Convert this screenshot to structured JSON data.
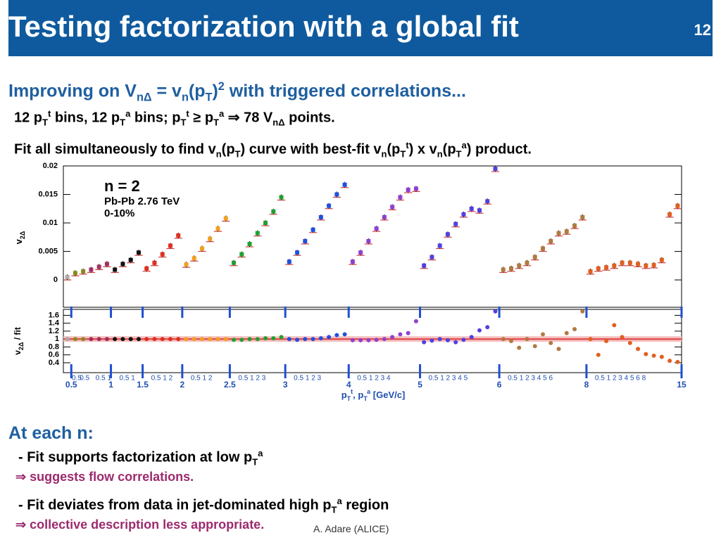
{
  "header": {
    "title": "Testing factorization with a global fit",
    "page": "12"
  },
  "subtitle": [
    {
      "text": "Improving on V"
    },
    {
      "text": "nΔ",
      "pos": "sub"
    },
    {
      "text": " = v"
    },
    {
      "text": "n",
      "pos": "sub"
    },
    {
      "text": "(p"
    },
    {
      "text": "T",
      "pos": "sub"
    },
    {
      "text": ")"
    },
    {
      "text": "2",
      "pos": "sup"
    },
    {
      "text": " with triggered correlations..."
    }
  ],
  "lines": [
    [
      {
        "text": "12 p"
      },
      {
        "text": "T",
        "pos": "sub"
      },
      {
        "text": "t",
        "pos": "sup"
      },
      {
        "text": " bins, 12 p"
      },
      {
        "text": "T",
        "pos": "sub"
      },
      {
        "text": "a",
        "pos": "sup"
      },
      {
        "text": " bins; p"
      },
      {
        "text": "T",
        "pos": "sub"
      },
      {
        "text": "t",
        "pos": "sup"
      },
      {
        "text": " ≥ p"
      },
      {
        "text": "T",
        "pos": "sub"
      },
      {
        "text": "a",
        "pos": "sup"
      },
      {
        "text": "  ⇒ 78 V"
      },
      {
        "text": "nΔ",
        "pos": "sub"
      },
      {
        "text": " points."
      }
    ],
    [
      {
        "text": "Fit all simultaneously to find v"
      },
      {
        "text": "n",
        "pos": "sub"
      },
      {
        "text": "(p"
      },
      {
        "text": "T",
        "pos": "sub"
      },
      {
        "text": ") curve with best-fit v"
      },
      {
        "text": "n",
        "pos": "sub"
      },
      {
        "text": "(p"
      },
      {
        "text": "T",
        "pos": "sub"
      },
      {
        "text": "t",
        "pos": "sup"
      },
      {
        "text": ") x v"
      },
      {
        "text": "n",
        "pos": "sub"
      },
      {
        "text": "(p"
      },
      {
        "text": "T",
        "pos": "sub"
      },
      {
        "text": "a",
        "pos": "sup"
      },
      {
        "text": ") product."
      }
    ]
  ],
  "chart_data": {
    "type": "scatter",
    "annotations": [
      "n = 2",
      "Pb-Pb 2.76 TeV",
      "0-10%"
    ],
    "ylabel": [
      {
        "text": "v"
      },
      {
        "text": "2Δ",
        "pos": "sub"
      }
    ],
    "ratio_ylabel": [
      {
        "text": "v"
      },
      {
        "text": "2Δ",
        "pos": "sub"
      },
      {
        "text": " / fit"
      }
    ],
    "xlabel": [
      {
        "text": "p"
      },
      {
        "text": "T",
        "pos": "sub"
      },
      {
        "text": "t",
        "pos": "sup"
      },
      {
        "text": ", p"
      },
      {
        "text": "T",
        "pos": "sub"
      },
      {
        "text": "a",
        "pos": "sup"
      },
      {
        "text": " [GeV/c]"
      }
    ],
    "ylim": [
      -0.0048,
      0.02
    ],
    "yticks": [
      0,
      0.005,
      0.01,
      0.015,
      0.02
    ],
    "ratio_ylim": [
      0.15,
      1.75
    ],
    "ratio_yticks": [
      0.4,
      0.6,
      0.8,
      1,
      1.2,
      1.4,
      1.6
    ],
    "trigger_labels": [
      "0.5",
      "1",
      "1.5",
      "2",
      "2.5",
      "3",
      "4",
      "5",
      "6",
      "8",
      "15"
    ],
    "assoc_labels": [
      "0.5",
      "0.5",
      "0.5 1",
      "0.5 1",
      "0.5  1  2",
      "0.5  1  2",
      "0.5  1  2  3",
      "0.5  1  2  3",
      "0.5  1  2  3 4",
      "0.5  1  2  3 4 5",
      "0.5  1  2  3 4 5 6",
      "0.5  1  2  3 4 5 6 8"
    ],
    "series": [
      {
        "color": "#aaaaaa",
        "values": [
          0.0005
        ],
        "ratio": [
          1.0
        ]
      },
      {
        "color": "#8a8a20",
        "values": [
          0.0012,
          0.0015
        ],
        "ratio": [
          1.0,
          1.0
        ]
      },
      {
        "color": "#a03060",
        "values": [
          0.0018,
          0.0023,
          0.0028
        ],
        "ratio": [
          1.0,
          1.0,
          1.0
        ]
      },
      {
        "color": "#111111",
        "values": [
          0.0018,
          0.0028,
          0.0035,
          0.0048
        ],
        "ratio": [
          1.0,
          1.0,
          1.0,
          1.0
        ]
      },
      {
        "color": "#e03020",
        "values": [
          0.002,
          0.003,
          0.0045,
          0.006,
          0.0078
        ],
        "ratio": [
          1.0,
          1.0,
          1.0,
          1.0,
          1.0
        ]
      },
      {
        "color": "#f0a020",
        "values": [
          0.0027,
          0.0038,
          0.0055,
          0.0072,
          0.009,
          0.0108
        ],
        "ratio": [
          1.0,
          1.0,
          1.0,
          1.0,
          1.0,
          1.0
        ]
      },
      {
        "color": "#20a030",
        "values": [
          0.003,
          0.0045,
          0.0063,
          0.0082,
          0.01,
          0.012,
          0.0145
        ],
        "ratio": [
          0.98,
          0.98,
          1.0,
          1.0,
          1.02,
          1.02,
          1.05
        ]
      },
      {
        "color": "#2050e0",
        "values": [
          0.0032,
          0.0048,
          0.0068,
          0.0088,
          0.011,
          0.013,
          0.015,
          0.0167
        ],
        "ratio": [
          1.0,
          0.98,
          1.0,
          1.0,
          1.02,
          1.05,
          1.1,
          1.12
        ]
      },
      {
        "color": "#9040d0",
        "values": [
          0.0032,
          0.0048,
          0.0068,
          0.009,
          0.011,
          0.0128,
          0.0145,
          0.0158,
          0.016
        ],
        "ratio": [
          0.97,
          0.97,
          0.97,
          0.98,
          1.0,
          1.05,
          1.12,
          1.15,
          1.45
        ]
      },
      {
        "color": "#5040e0",
        "values": [
          0.0025,
          0.004,
          0.006,
          0.008,
          0.0098,
          0.0115,
          0.0125,
          0.0122,
          0.0138,
          0.0195
        ],
        "ratio": [
          0.92,
          0.96,
          1.0,
          0.97,
          0.92,
          0.98,
          1.05,
          1.22,
          1.3,
          1.7
        ]
      },
      {
        "color": "#b07a40",
        "values": [
          0.0018,
          0.002,
          0.0025,
          0.003,
          0.004,
          0.0055,
          0.0068,
          0.0082,
          0.0085,
          0.0095,
          0.011
        ],
        "ratio": [
          1.0,
          0.95,
          0.78,
          1.0,
          0.82,
          1.12,
          0.9,
          0.75,
          1.15,
          1.25,
          1.7
        ]
      },
      {
        "color": "#e06020",
        "values": [
          0.0015,
          0.002,
          0.0022,
          0.0025,
          0.003,
          0.003,
          0.0028,
          0.0025,
          0.0026,
          0.0035,
          0.0115,
          0.013
        ],
        "ratio": [
          1.0,
          0.6,
          0.95,
          1.35,
          1.05,
          0.9,
          0.75,
          0.62,
          0.58,
          0.55,
          0.45,
          0.42
        ]
      }
    ]
  },
  "section": "At each n:",
  "bullets": [
    {
      "text": [
        {
          "text": "- Fit supports factorization at low p"
        },
        {
          "text": "T",
          "pos": "sub"
        },
        {
          "text": "a",
          "pos": "sup"
        }
      ],
      "note": "⇒ suggests flow correlations."
    },
    {
      "text": [
        {
          "text": "- Fit deviates from data in jet-dominated high p"
        },
        {
          "text": "T",
          "pos": "sub"
        },
        {
          "text": "a",
          "pos": "sup"
        },
        {
          "text": " region"
        }
      ],
      "note": "⇒ collective description less appropriate."
    }
  ],
  "credit": "A. Adare (ALICE)"
}
